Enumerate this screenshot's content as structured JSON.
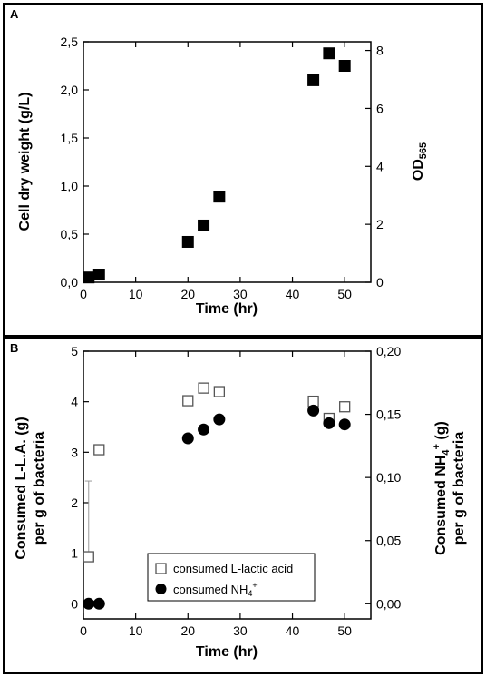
{
  "chart_data": [
    {
      "panel": "A",
      "type": "scatter",
      "xlabel": "Time (hr)",
      "ylabel": "Cell dry weight (g/L)",
      "y2label": "OD565",
      "xlim": [
        0,
        55
      ],
      "ylim": [
        0,
        2.5
      ],
      "y2lim": [
        0,
        8.3
      ],
      "xticks": [
        "0",
        "10",
        "20",
        "30",
        "40",
        "50"
      ],
      "yticks": [
        "0,0",
        "0,5",
        "1,0",
        "1,5",
        "2,0",
        "2,5"
      ],
      "y2ticks": [
        "0",
        "2",
        "4",
        "6",
        "8"
      ],
      "grid": false,
      "series": [
        {
          "marker": "filled-square",
          "x": [
            1,
            3,
            20,
            23,
            26,
            44,
            47,
            50
          ],
          "y": [
            0.05,
            0.08,
            0.42,
            0.59,
            0.89,
            2.1,
            2.38,
            2.25
          ]
        }
      ]
    },
    {
      "panel": "B",
      "type": "scatter",
      "xlabel": "Time (hr)",
      "ylabel": "Consumed L-L.A. (g) per g of bacteria",
      "y2label": "Consumed NH4+ (g) per g of bacteria",
      "xlim": [
        0,
        55
      ],
      "ylim": [
        -0.3,
        5
      ],
      "y2lim": [
        -0.012,
        0.2
      ],
      "xticks": [
        "0",
        "10",
        "20",
        "30",
        "40",
        "50"
      ],
      "yticks": [
        "0",
        "1",
        "2",
        "3",
        "4",
        "5"
      ],
      "y2ticks": [
        "0,00",
        "0,05",
        "0,10",
        "0,15",
        "0,20"
      ],
      "grid": false,
      "legend_position": "bottom-center",
      "series": [
        {
          "name": "consumed L-lactic acid",
          "axis": "left",
          "marker": "open-square",
          "x": [
            1,
            3,
            20,
            23,
            26,
            44,
            47,
            50
          ],
          "y": [
            0.93,
            3.05,
            4.02,
            4.27,
            4.2,
            4.01,
            3.67,
            3.9
          ],
          "error_up": [
            1.5,
            0,
            0,
            0,
            0,
            0,
            0,
            0
          ]
        },
        {
          "name": "consumed NH4+",
          "axis": "right",
          "marker": "filled-circle",
          "x": [
            1,
            3,
            20,
            23,
            26,
            44,
            47,
            50
          ],
          "y": [
            0.0,
            0.0,
            0.131,
            0.138,
            0.146,
            0.153,
            0.143,
            0.142
          ]
        }
      ]
    }
  ]
}
